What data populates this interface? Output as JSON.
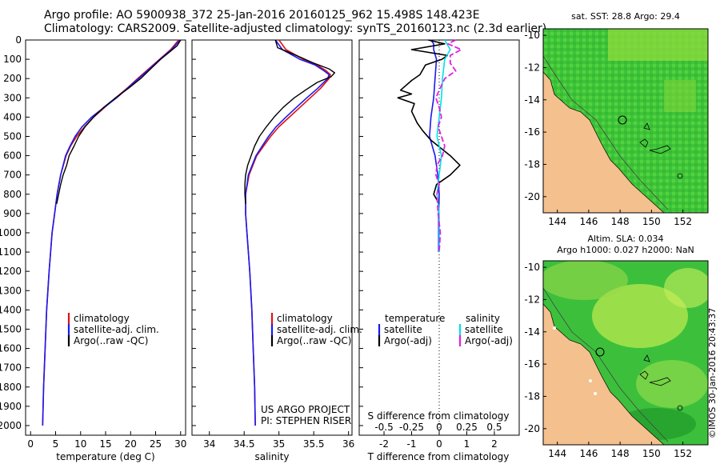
{
  "header": {
    "line1": "Argo profile: AO 5900938_372 25-Jan-2016 20160125_962 15.498S 148.423E",
    "line2": "Climatology: CARS2009. Satellite-adjusted climatology: synTS_20160123.nc (2.3d earlier)"
  },
  "colors": {
    "climatology": "#e01010",
    "satellite": "#1a1af0",
    "argo": "#000000",
    "sat_salinity": "#00e0e8",
    "argo_salinity": "#e020e0",
    "land": "#f3c08e",
    "ocean_dark": "#2aa82a"
  },
  "chart_data": [
    {
      "type": "line",
      "title": "",
      "xlabel": "temperature (deg C)",
      "ylabel": "",
      "xlim": [
        -1,
        31
      ],
      "ylim": [
        2050,
        0
      ],
      "xticks": [
        "0",
        "5",
        "10",
        "15",
        "20",
        "25",
        "30"
      ],
      "yticks": [
        "0",
        "100",
        "200",
        "300",
        "400",
        "500",
        "600",
        "700",
        "800",
        "900",
        "1000",
        "1100",
        "1200",
        "1300",
        "1400",
        "1500",
        "1600",
        "1700",
        "1800",
        "1900",
        "2000"
      ],
      "legend": [
        "climatology",
        "satellite-adj. clim.",
        "Argo(..raw -QC)"
      ],
      "series": [
        {
          "name": "climatology",
          "depth": [
            0,
            50,
            100,
            150,
            200,
            250,
            300,
            350,
            400,
            450,
            500,
            550,
            600,
            700,
            800,
            900,
            1000,
            1200,
            1400,
            1600,
            1800,
            2000
          ],
          "values": [
            29.6,
            28.0,
            25.8,
            23.6,
            21.4,
            19.3,
            17.0,
            14.8,
            12.6,
            10.8,
            9.2,
            8.0,
            7.1,
            6.0,
            5.3,
            4.8,
            4.3,
            3.7,
            3.2,
            2.9,
            2.6,
            2.4
          ]
        },
        {
          "name": "satellite-adj. clim.",
          "depth": [
            0,
            50,
            100,
            150,
            200,
            250,
            300,
            350,
            400,
            450,
            500,
            550,
            600,
            700,
            800,
            900,
            1000,
            1200,
            1400,
            1600,
            1800,
            2000
          ],
          "values": [
            29.9,
            28.2,
            25.9,
            23.8,
            21.6,
            19.4,
            17.2,
            14.7,
            12.2,
            10.3,
            8.9,
            7.9,
            7.0,
            6.0,
            5.3,
            4.8,
            4.3,
            3.7,
            3.2,
            2.9,
            2.6,
            2.4
          ]
        },
        {
          "name": "Argo(..raw -QC)",
          "depth": [
            0,
            30,
            60,
            100,
            150,
            200,
            250,
            300,
            350,
            400,
            450,
            500,
            550,
            600,
            650,
            700,
            750,
            800,
            850
          ],
          "values": [
            30.0,
            29.3,
            27.9,
            26.0,
            24.0,
            22.0,
            19.6,
            17.0,
            14.6,
            12.6,
            10.9,
            9.6,
            8.7,
            7.7,
            7.2,
            6.5,
            6.0,
            5.6,
            5.2
          ]
        }
      ]
    },
    {
      "type": "line",
      "title": "",
      "xlabel": "salinity",
      "ylabel": "",
      "xlim": [
        33.75,
        36.05
      ],
      "ylim": [
        2050,
        0
      ],
      "xticks": [
        "34",
        "34.5",
        "35",
        "35.5",
        "36"
      ],
      "legend": [
        "climatology",
        "satellite-adj. clim.",
        "Argo(..raw -QC)"
      ],
      "series": [
        {
          "name": "climatology",
          "depth": [
            0,
            50,
            100,
            130,
            160,
            180,
            200,
            250,
            300,
            350,
            400,
            450,
            500,
            550,
            600,
            700,
            800,
            900,
            1000,
            1200,
            1400,
            1600,
            1800,
            2000
          ],
          "values": [
            35.0,
            35.1,
            35.35,
            35.55,
            35.68,
            35.74,
            35.72,
            35.6,
            35.45,
            35.3,
            35.15,
            35.0,
            34.88,
            34.78,
            34.68,
            34.57,
            34.52,
            34.52,
            34.54,
            34.58,
            34.61,
            34.63,
            34.65,
            34.66
          ]
        },
        {
          "name": "satellite-adj. clim.",
          "depth": [
            0,
            50,
            100,
            130,
            160,
            180,
            200,
            250,
            300,
            350,
            400,
            450,
            500,
            550,
            600,
            700,
            800,
            900,
            1000,
            1200,
            1400,
            1600,
            1800,
            2000
          ],
          "values": [
            34.95,
            35.05,
            35.3,
            35.52,
            35.65,
            35.72,
            35.7,
            35.56,
            35.4,
            35.25,
            35.1,
            34.96,
            34.85,
            34.76,
            34.67,
            34.56,
            34.52,
            34.52,
            34.54,
            34.58,
            34.61,
            34.63,
            34.65,
            34.66
          ]
        },
        {
          "name": "Argo(..raw -QC)",
          "depth": [
            0,
            40,
            80,
            120,
            150,
            170,
            190,
            220,
            260,
            300,
            350,
            400,
            450,
            500,
            550,
            600,
            650,
            700,
            750,
            800,
            850
          ],
          "values": [
            34.95,
            34.98,
            35.25,
            35.5,
            35.72,
            35.8,
            35.75,
            35.55,
            35.38,
            35.22,
            35.06,
            34.93,
            34.82,
            34.72,
            34.65,
            34.6,
            34.55,
            34.52,
            34.51,
            34.51,
            34.52
          ]
        }
      ]
    },
    {
      "type": "line",
      "title": "",
      "xlabel": "T difference from climatology",
      "xlabel2": "S difference from climatology",
      "ylabel": "",
      "xlim": [
        -2.9,
        2.9
      ],
      "ylim": [
        2050,
        0
      ],
      "xticks": [
        "-2",
        "-1",
        "0",
        "1",
        "2"
      ],
      "xticks_s": [
        "-0.5",
        "-0.25",
        "0",
        "0.25",
        "0.5"
      ],
      "legend_headers": [
        "temperature",
        "salinity"
      ],
      "legend": [
        "satellite",
        "Argo(-adj)",
        "satellite",
        "Argo(-adj)"
      ],
      "series": [
        {
          "name": "temperature satellite",
          "depth": [
            0,
            20,
            50,
            100,
            200,
            300,
            400,
            500,
            600,
            700,
            800,
            900,
            1000,
            1100
          ],
          "values": [
            -0.3,
            -0.2,
            -0.2,
            -0.1,
            -0.15,
            -0.2,
            -0.3,
            -0.35,
            -0.15,
            -0.05,
            0.0,
            -0.02,
            -0.02,
            -0.02
          ]
        },
        {
          "name": "temperature Argo(-adj)",
          "depth": [
            0,
            20,
            50,
            80,
            100,
            130,
            180,
            210,
            260,
            280,
            300,
            330,
            370,
            400,
            430,
            470,
            520,
            600,
            650,
            700,
            750,
            800,
            850
          ],
          "values": [
            -0.4,
            0.2,
            -1.0,
            0.3,
            0.1,
            -0.5,
            -0.7,
            -1.0,
            -1.4,
            -1.0,
            -1.5,
            -0.9,
            -1.0,
            -0.9,
            -0.8,
            -0.6,
            -0.3,
            0.4,
            0.75,
            0.4,
            -0.1,
            -0.2,
            0.0
          ]
        },
        {
          "name": "salinity satellite",
          "depth": [
            0,
            50,
            100,
            150,
            200,
            300,
            400,
            500,
            600,
            700,
            800,
            900,
            1000,
            1100
          ],
          "values": [
            0.05,
            0.1,
            0.05,
            0.04,
            0.03,
            0.02,
            0.0,
            -0.02,
            0.02,
            0.0,
            -0.02,
            0.0,
            0.0,
            0.0
          ]
        },
        {
          "name": "salinity Argo(-adj)",
          "depth": [
            0,
            20,
            50,
            80,
            120,
            160,
            200,
            260,
            300,
            350,
            400,
            450,
            500,
            550,
            600,
            650,
            700,
            750,
            800,
            900,
            1000,
            1100
          ],
          "values": [
            0.15,
            0.08,
            0.2,
            0.1,
            0.1,
            0.15,
            0.05,
            0.0,
            -0.03,
            0.0,
            0.02,
            -0.01,
            0.02,
            0.05,
            0.03,
            -0.02,
            -0.03,
            0.0,
            -0.02,
            -0.01,
            0.01,
            0.0
          ]
        }
      ]
    },
    {
      "type": "heatmap",
      "title": "sat. SST: 28.8 Argo: 29.4",
      "xticks": [
        "144",
        "146",
        "148",
        "150",
        "152"
      ],
      "yticks": [
        "-10",
        "-12",
        "-14",
        "-16",
        "-18",
        "-20"
      ],
      "xlim": [
        143.1,
        153.6
      ],
      "ylim": [
        -21.0,
        -9.6
      ],
      "argo_position": [
        148.423,
        -15.498
      ]
    },
    {
      "type": "heatmap",
      "title": "Altim. SLA: 0.034",
      "subtitle": "Argo h1000: 0.027 h2000: NaN",
      "xticks": [
        "144",
        "146",
        "148",
        "150",
        "152"
      ],
      "yticks": [
        "-10",
        "-12",
        "-14",
        "-16",
        "-18",
        "-20"
      ],
      "xlim": [
        143.1,
        153.6
      ],
      "ylim": [
        -21.0,
        -9.6
      ],
      "argo_position": [
        148.423,
        -15.498
      ]
    }
  ],
  "annotations": {
    "project": "US ARGO PROJECT",
    "pi": "PI: STEPHEN RISER",
    "credit": "©IMOS 30-Jan-2016 20:43:37"
  }
}
